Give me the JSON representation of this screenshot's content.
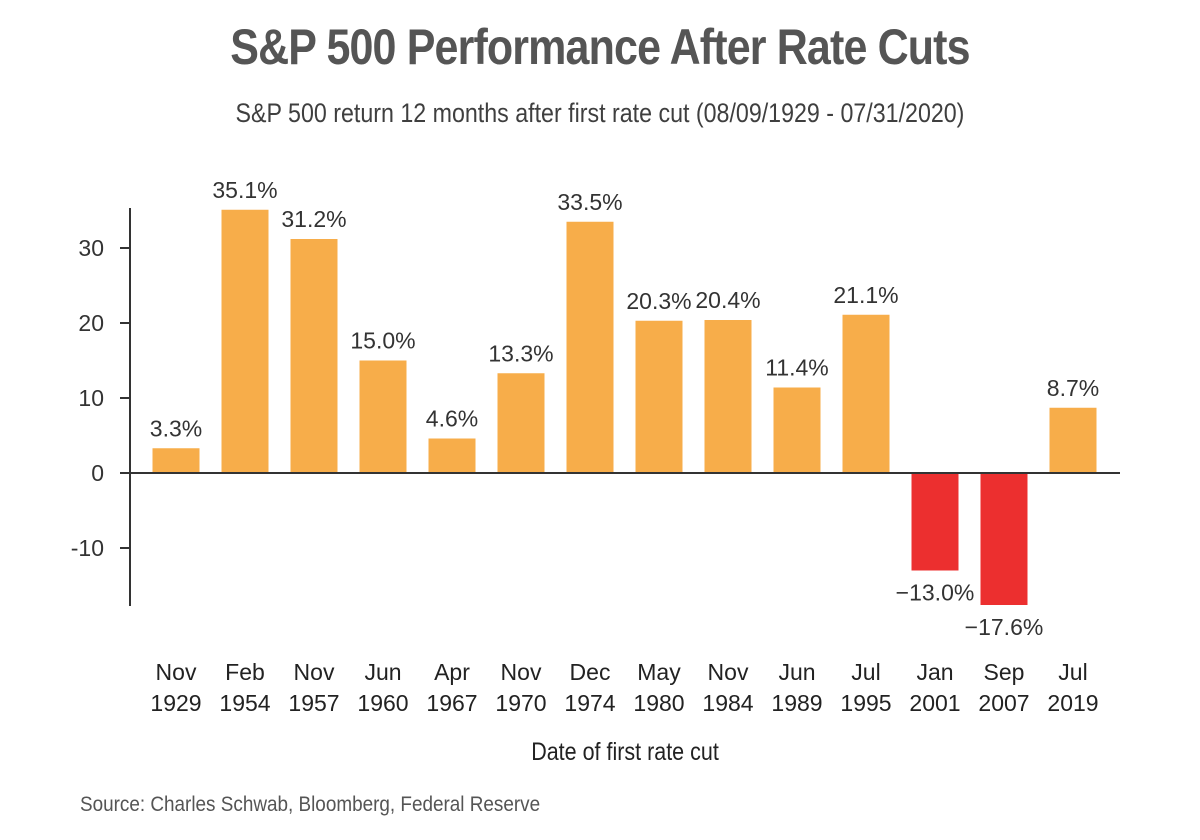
{
  "chart_data": {
    "type": "bar",
    "title": "S&P 500 Performance After Rate Cuts",
    "subtitle": "S&P 500 return 12 months after first rate cut (08/09/1929 - 07/31/2020)",
    "xlabel": "Date of first rate cut",
    "ylabel": "",
    "source": "Source: Charles Schwab, Bloomberg, Federal Reserve",
    "categories": [
      [
        "Nov",
        "1929"
      ],
      [
        "Feb",
        "1954"
      ],
      [
        "Nov",
        "1957"
      ],
      [
        "Jun",
        "1960"
      ],
      [
        "Apr",
        "1967"
      ],
      [
        "Nov",
        "1970"
      ],
      [
        "Dec",
        "1974"
      ],
      [
        "May",
        "1980"
      ],
      [
        "Nov",
        "1984"
      ],
      [
        "Jun",
        "1989"
      ],
      [
        "Jul",
        "1995"
      ],
      [
        "Jan",
        "2001"
      ],
      [
        "Sep",
        "2007"
      ],
      [
        "Jul",
        "2019"
      ]
    ],
    "values": [
      3.3,
      35.1,
      31.2,
      15.0,
      4.6,
      13.3,
      33.5,
      20.3,
      20.4,
      11.4,
      21.1,
      -13.0,
      -17.6,
      8.7
    ],
    "data_labels": [
      "3.3%",
      "35.1%",
      "31.2%",
      "15.0%",
      "4.6%",
      "13.3%",
      "33.5%",
      "20.3%",
      "20.4%",
      "11.4%",
      "21.1%",
      "−13.0%",
      "−17.6%",
      "8.7%"
    ],
    "yticks": [
      -10,
      0,
      10,
      20,
      30
    ],
    "ylim": [
      -17.6,
      35.1
    ],
    "grid": false,
    "colors": {
      "positive": "#F7AD4A",
      "negative": "#EC2F2F",
      "axis": "#333333"
    }
  }
}
